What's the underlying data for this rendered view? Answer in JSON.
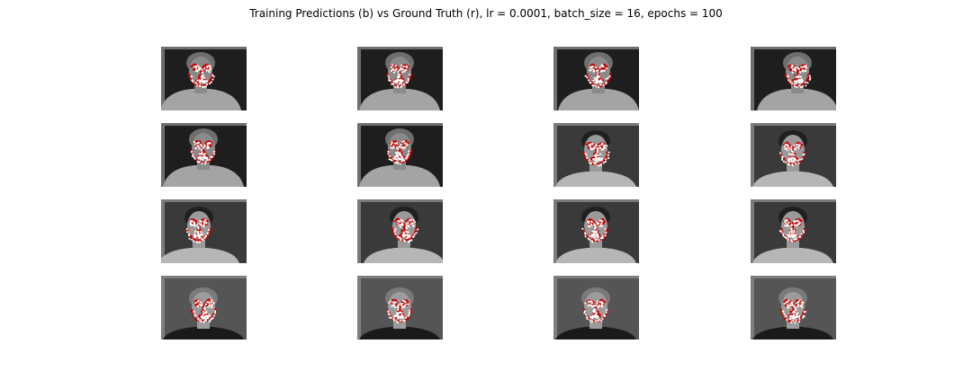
{
  "chart_data": {
    "type": "image-grid",
    "title": "Training Predictions (b) vs Ground Truth (r), lr = 0.0001, batch_size = 16, epochs = 100",
    "hyperparameters": {
      "lr": 0.0001,
      "batch_size": 16,
      "epochs": 100
    },
    "legend": [
      {
        "name": "Predictions",
        "marker": "b",
        "color": "#ffffff"
      },
      {
        "name": "Ground Truth",
        "marker": "r",
        "color": "#cc0000"
      }
    ],
    "grid": {
      "rows": 4,
      "cols": 4
    },
    "panels": [
      {
        "subject": "curly-hair-man-sweater",
        "pose": "tilt-left"
      },
      {
        "subject": "curly-hair-man-sweater",
        "pose": "frontal"
      },
      {
        "subject": "curly-hair-man-sweater",
        "pose": "tilt-right"
      },
      {
        "subject": "curly-hair-man-sweater",
        "pose": "turn-right"
      },
      {
        "subject": "curly-hair-man-sweater",
        "pose": "frontal"
      },
      {
        "subject": "curly-hair-man-sweater",
        "pose": "frontal"
      },
      {
        "subject": "dark-hair-man",
        "pose": "frontal"
      },
      {
        "subject": "dark-hair-man",
        "pose": "tilt-down"
      },
      {
        "subject": "dark-hair-man",
        "pose": "turn-left"
      },
      {
        "subject": "dark-hair-man",
        "pose": "turn-right"
      },
      {
        "subject": "dark-hair-man",
        "pose": "frontal"
      },
      {
        "subject": "dark-hair-man",
        "pose": "frontal"
      },
      {
        "subject": "bald-man-dark-jacket",
        "pose": "frontal"
      },
      {
        "subject": "bald-man-dark-jacket",
        "pose": "frontal"
      },
      {
        "subject": "bald-man-dark-jacket",
        "pose": "frontal"
      },
      {
        "subject": "bald-man-dark-jacket",
        "pose": "frontal"
      }
    ]
  }
}
